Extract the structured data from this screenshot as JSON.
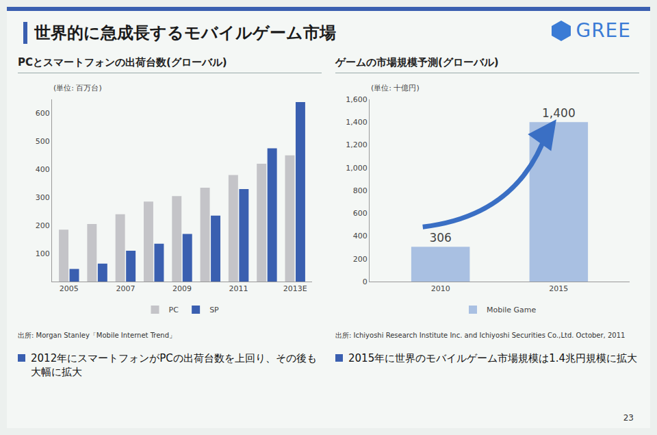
{
  "slide": {
    "title": "世界的に急成長するモバイルゲーム市場",
    "logo": "GREE",
    "page": "23"
  },
  "chart_data": [
    {
      "type": "bar",
      "title": "PCとスマートフォンの出荷台数(グローバル)",
      "y_label": "(単位: 百万台)",
      "categories": [
        "2005",
        null,
        "2007",
        null,
        "2009",
        null,
        "2011",
        null,
        "2013E"
      ],
      "series": [
        {
          "name": "PC",
          "color": "#c4c4c8",
          "values": [
            185,
            205,
            240,
            285,
            305,
            335,
            380,
            420,
            450
          ]
        },
        {
          "name": "SP",
          "color": "#3a5fb0",
          "values": [
            45,
            64,
            110,
            135,
            170,
            235,
            330,
            475,
            640
          ]
        }
      ],
      "ylim": [
        0,
        650
      ],
      "yticks": [
        100,
        200,
        300,
        400,
        500,
        600
      ],
      "grid": false,
      "legend": "bottom",
      "source": "出所: Morgan Stanley「Mobile Internet Trend」",
      "caption": "2012年にスマートフォンがPCの出荷台数を上回り、その後も大幅に拡大"
    },
    {
      "type": "bar",
      "title": "ゲームの市場規模予測(グローバル)",
      "y_label": "(単位: 十億円)",
      "categories": [
        "2010",
        "2015"
      ],
      "series": [
        {
          "name": "Mobile Game",
          "color": "#a9c0e2",
          "values": [
            306,
            1400
          ],
          "value_labels": [
            "306",
            "1,400"
          ]
        }
      ],
      "ylim": [
        0,
        1600
      ],
      "yticks": [
        0,
        200,
        400,
        600,
        800,
        {
          "value": 1000,
          "label": "1,000"
        },
        {
          "value": 1200,
          "label": "1,200"
        },
        {
          "value": 1400,
          "label": "1,400"
        },
        {
          "value": 1600,
          "label": "1,600"
        }
      ],
      "grid": false,
      "legend": "bottom",
      "data_labels": true,
      "source": "出所: Ichiyoshi Research Institute Inc. and Ichiyoshi Securities Co.,Ltd. October, 2011",
      "caption": "2015年に世界のモバイルゲーム市場規模は1.4兆円規模に拡大"
    }
  ]
}
